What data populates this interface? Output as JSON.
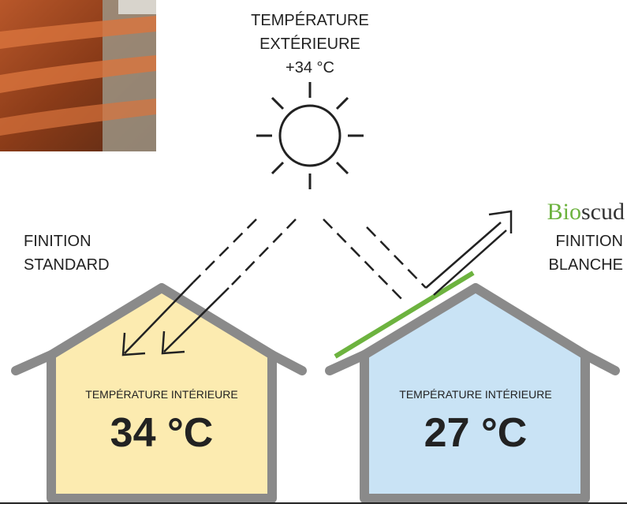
{
  "header": {
    "title_lines": [
      "TEMPÉRATURE",
      "EXTÉRIEURE",
      "+34 °C"
    ]
  },
  "left": {
    "label_lines": [
      "FINITION",
      "STANDARD"
    ],
    "inner_label": "TEMPÉRATURE INTÉRIEURE",
    "inner_temp": "34 °C"
  },
  "right": {
    "brand_parts": [
      "Bio",
      "scud"
    ],
    "label_lines": [
      "FINITION",
      "BLANCHE"
    ],
    "inner_label": "TEMPÉRATURE INTÉRIEURE",
    "inner_temp": "27 °C"
  }
}
